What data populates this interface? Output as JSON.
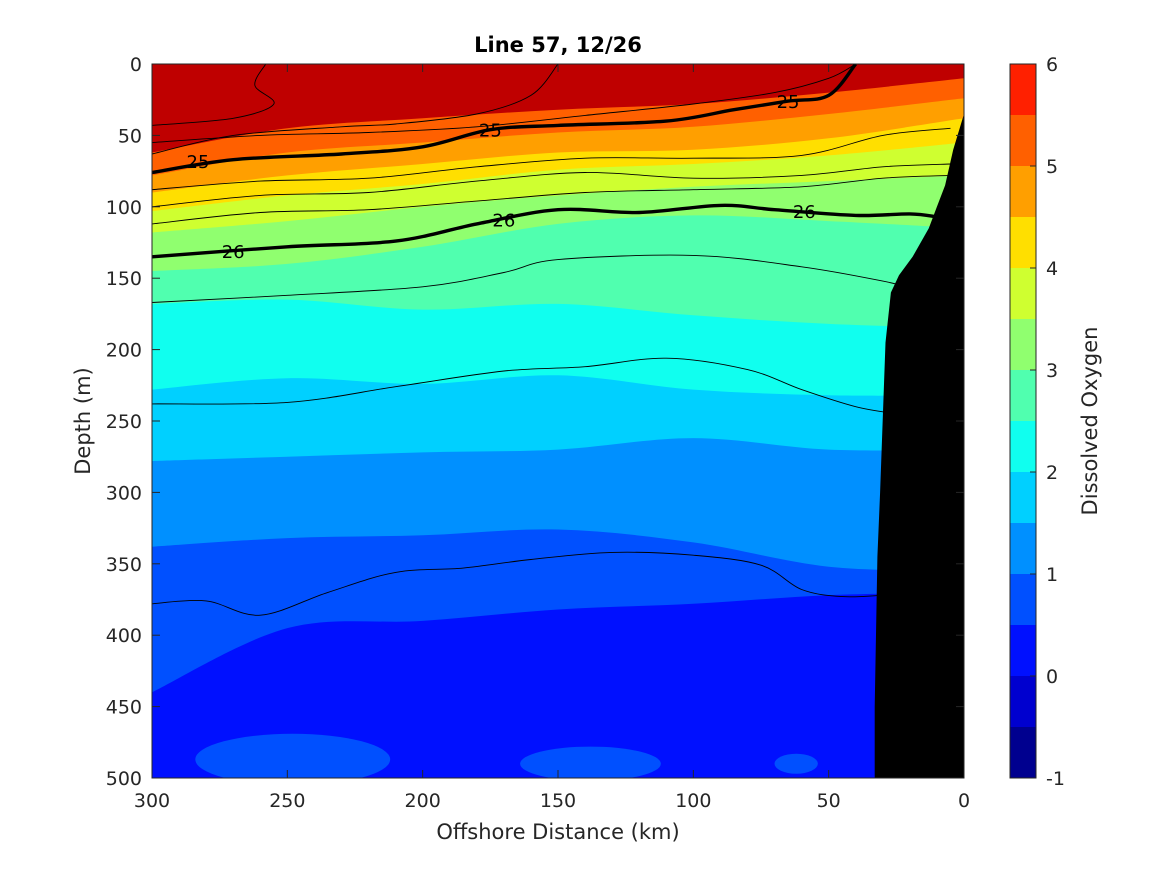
{
  "chart_data": {
    "type": "contourf",
    "title": "Line 57, 12/26",
    "xlabel": "Offshore Distance (km)",
    "ylabel": "Depth (m)",
    "xlim": [
      300,
      0
    ],
    "ylim": [
      500,
      0
    ],
    "x_ticks": [
      300,
      250,
      200,
      150,
      100,
      50,
      0
    ],
    "y_ticks": [
      0,
      50,
      100,
      150,
      200,
      250,
      300,
      350,
      400,
      450,
      500
    ],
    "colorbar": {
      "label": "Dissolved Oxygen",
      "range": [
        -1,
        6
      ],
      "ticks": [
        -1,
        0,
        1,
        2,
        3,
        4,
        5,
        6
      ],
      "levels": [
        -1,
        -0.5,
        0,
        0.5,
        1,
        1.5,
        2,
        2.5,
        3,
        3.5,
        4,
        4.5,
        5,
        5.5,
        6
      ],
      "colors": [
        "#00008f",
        "#0000cf",
        "#0010ff",
        "#0050ff",
        "#0090ff",
        "#00d0ff",
        "#10ffef",
        "#50ffaf",
        "#90ff6f",
        "#cfff30",
        "#ffdf00",
        "#ff9f00",
        "#ff6000",
        "#ff2000",
        "#bf0000"
      ]
    },
    "oxygen_fill": [
      {
        "level": 5.5,
        "depth": [
          [
            300,
            62
          ],
          [
            250,
            45
          ],
          [
            200,
            38
          ],
          [
            150,
            32
          ],
          [
            100,
            28
          ],
          [
            50,
            20
          ],
          [
            0,
            10
          ]
        ]
      },
      {
        "level": 5.0,
        "depth": [
          [
            300,
            78
          ],
          [
            250,
            62
          ],
          [
            200,
            55
          ],
          [
            150,
            48
          ],
          [
            100,
            44
          ],
          [
            50,
            35
          ],
          [
            0,
            24
          ]
        ]
      },
      {
        "level": 4.5,
        "depth": [
          [
            300,
            90
          ],
          [
            250,
            78
          ],
          [
            200,
            70
          ],
          [
            150,
            62
          ],
          [
            100,
            60
          ],
          [
            50,
            52
          ],
          [
            0,
            38
          ]
        ]
      },
      {
        "level": 4.0,
        "depth": [
          [
            300,
            103
          ],
          [
            250,
            92
          ],
          [
            200,
            84
          ],
          [
            150,
            74
          ],
          [
            100,
            70
          ],
          [
            50,
            64
          ],
          [
            0,
            55
          ]
        ]
      },
      {
        "level": 3.5,
        "depth": [
          [
            300,
            118
          ],
          [
            250,
            110
          ],
          [
            200,
            100
          ],
          [
            150,
            92
          ],
          [
            100,
            86
          ],
          [
            50,
            82
          ],
          [
            0,
            78
          ]
        ]
      },
      {
        "level": 3.0,
        "depth": [
          [
            300,
            145
          ],
          [
            250,
            140
          ],
          [
            200,
            128
          ],
          [
            150,
            112
          ],
          [
            100,
            106
          ],
          [
            50,
            110
          ],
          [
            0,
            115
          ]
        ]
      },
      {
        "level": 2.5,
        "depth": [
          [
            300,
            168
          ],
          [
            250,
            165
          ],
          [
            200,
            172
          ],
          [
            150,
            168
          ],
          [
            100,
            176
          ],
          [
            50,
            182
          ],
          [
            0,
            185
          ]
        ]
      },
      {
        "level": 2.0,
        "depth": [
          [
            300,
            228
          ],
          [
            250,
            220
          ],
          [
            200,
            224
          ],
          [
            150,
            218
          ],
          [
            100,
            228
          ],
          [
            50,
            232
          ],
          [
            0,
            232
          ]
        ]
      },
      {
        "level": 1.5,
        "depth": [
          [
            300,
            278
          ],
          [
            250,
            275
          ],
          [
            200,
            272
          ],
          [
            150,
            270
          ],
          [
            100,
            262
          ],
          [
            50,
            270
          ],
          [
            0,
            270
          ]
        ]
      },
      {
        "level": 1.0,
        "depth": [
          [
            300,
            338
          ],
          [
            250,
            332
          ],
          [
            200,
            330
          ],
          [
            150,
            326
          ],
          [
            100,
            335
          ],
          [
            50,
            352
          ],
          [
            0,
            355
          ]
        ]
      },
      {
        "level": 0.5,
        "depth": [
          [
            300,
            440
          ],
          [
            250,
            395
          ],
          [
            200,
            390
          ],
          [
            150,
            382
          ],
          [
            100,
            378
          ],
          [
            50,
            372
          ],
          [
            0,
            370
          ]
        ]
      }
    ],
    "low_oxygen_pockets": [
      {
        "level": 1.0,
        "center": [
          248,
          487
        ],
        "radius": [
          36,
          18
        ]
      },
      {
        "level": 1.0,
        "center": [
          138,
          490
        ],
        "radius": [
          26,
          12
        ]
      },
      {
        "level": 1.0,
        "center": [
          62,
          490
        ],
        "radius": [
          8,
          7
        ]
      }
    ],
    "density_contours": [
      {
        "label": "25",
        "bold": true,
        "label_at": [
          [
            283,
            68
          ],
          [
            175,
            46
          ],
          [
            65,
            26
          ]
        ],
        "points": [
          [
            300,
            76
          ],
          [
            270,
            67
          ],
          [
            230,
            63
          ],
          [
            200,
            58
          ],
          [
            175,
            46
          ],
          [
            150,
            43
          ],
          [
            110,
            40
          ],
          [
            85,
            32
          ],
          [
            65,
            26
          ],
          [
            50,
            22
          ],
          [
            40,
            0
          ]
        ]
      },
      {
        "label": "26",
        "bold": true,
        "label_at": [
          [
            270,
            131
          ],
          [
            170,
            109
          ],
          [
            59,
            103
          ]
        ],
        "points": [
          [
            300,
            135
          ],
          [
            250,
            128
          ],
          [
            210,
            124
          ],
          [
            180,
            112
          ],
          [
            150,
            102
          ],
          [
            120,
            104
          ],
          [
            90,
            99
          ],
          [
            70,
            102
          ],
          [
            40,
            106
          ],
          [
            20,
            105
          ],
          [
            10,
            107
          ]
        ]
      },
      {
        "label": "",
        "bold": false,
        "points": [
          [
            300,
            43
          ],
          [
            270,
            38
          ],
          [
            255,
            28
          ],
          [
            262,
            15
          ],
          [
            258,
            0
          ]
        ]
      },
      {
        "label": "",
        "bold": false,
        "points": [
          [
            300,
            63
          ],
          [
            270,
            50
          ],
          [
            230,
            44
          ],
          [
            210,
            42
          ],
          [
            180,
            35
          ],
          [
            160,
            22
          ],
          [
            150,
            0
          ]
        ]
      },
      {
        "label": "",
        "bold": false,
        "points": [
          [
            300,
            55
          ],
          [
            260,
            50
          ],
          [
            220,
            48
          ],
          [
            180,
            44
          ],
          [
            140,
            36
          ],
          [
            100,
            28
          ],
          [
            70,
            20
          ],
          [
            50,
            10
          ],
          [
            40,
            0
          ]
        ]
      },
      {
        "label": "",
        "bold": false,
        "points": [
          [
            300,
            88
          ],
          [
            260,
            82
          ],
          [
            220,
            80
          ],
          [
            180,
            72
          ],
          [
            140,
            66
          ],
          [
            100,
            66
          ],
          [
            60,
            64
          ],
          [
            30,
            50
          ],
          [
            5,
            45
          ]
        ]
      },
      {
        "label": "",
        "bold": false,
        "points": [
          [
            300,
            100
          ],
          [
            260,
            92
          ],
          [
            220,
            90
          ],
          [
            180,
            82
          ],
          [
            140,
            76
          ],
          [
            100,
            80
          ],
          [
            60,
            78
          ],
          [
            30,
            72
          ],
          [
            5,
            70
          ]
        ]
      },
      {
        "label": "",
        "bold": false,
        "points": [
          [
            300,
            112
          ],
          [
            260,
            104
          ],
          [
            220,
            102
          ],
          [
            180,
            96
          ],
          [
            140,
            90
          ],
          [
            100,
            88
          ],
          [
            60,
            86
          ],
          [
            30,
            80
          ],
          [
            5,
            78
          ]
        ]
      },
      {
        "label": "",
        "bold": false,
        "points": [
          [
            300,
            167
          ],
          [
            250,
            162
          ],
          [
            200,
            156
          ],
          [
            170,
            146
          ],
          [
            150,
            137
          ],
          [
            100,
            134
          ],
          [
            60,
            142
          ],
          [
            30,
            152
          ],
          [
            22,
            156
          ]
        ]
      },
      {
        "label": "",
        "bold": false,
        "points": [
          [
            300,
            238
          ],
          [
            250,
            237
          ],
          [
            210,
            226
          ],
          [
            170,
            215
          ],
          [
            140,
            212
          ],
          [
            110,
            206
          ],
          [
            80,
            214
          ],
          [
            60,
            228
          ],
          [
            40,
            240
          ],
          [
            25,
            245
          ]
        ]
      },
      {
        "label": "",
        "bold": false,
        "points": [
          [
            300,
            378
          ],
          [
            280,
            376
          ],
          [
            260,
            386
          ],
          [
            235,
            370
          ],
          [
            210,
            356
          ],
          [
            185,
            353
          ],
          [
            160,
            347
          ],
          [
            130,
            342
          ],
          [
            100,
            344
          ],
          [
            75,
            351
          ],
          [
            60,
            368
          ],
          [
            45,
            373
          ],
          [
            30,
            372
          ]
        ]
      }
    ],
    "bathymetry": [
      [
        0,
        35
      ],
      [
        4,
        60
      ],
      [
        7,
        85
      ],
      [
        10,
        100
      ],
      [
        13,
        115
      ],
      [
        19,
        135
      ],
      [
        24,
        148
      ],
      [
        27,
        160
      ],
      [
        29,
        195
      ],
      [
        31,
        300
      ],
      [
        32,
        345
      ],
      [
        33,
        450
      ],
      [
        33,
        500
      ]
    ]
  }
}
